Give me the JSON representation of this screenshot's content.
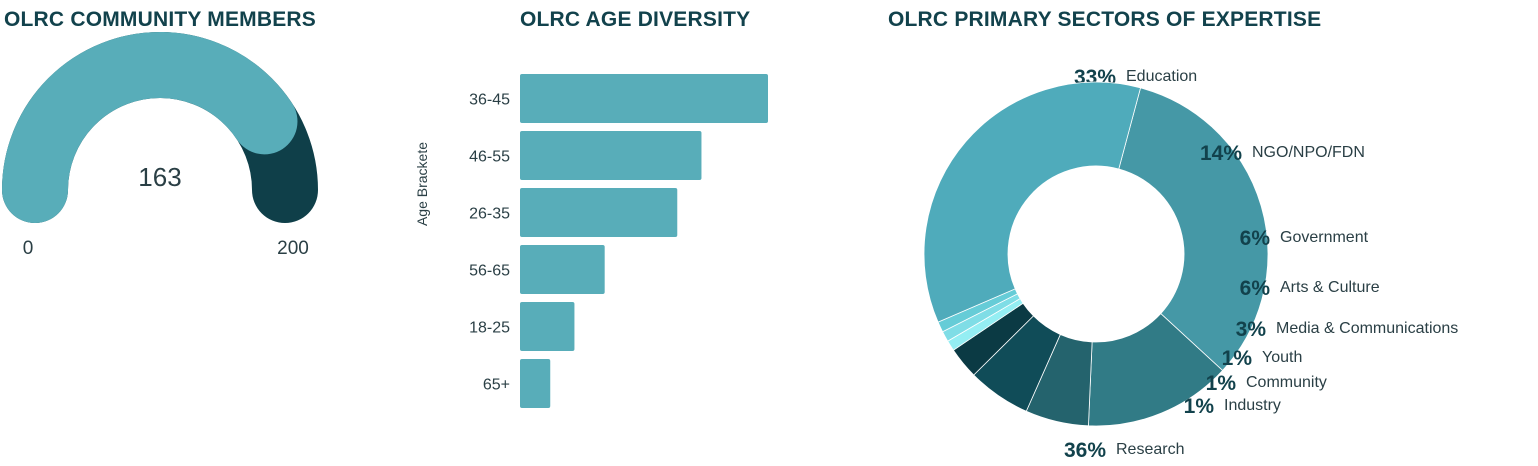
{
  "colors": {
    "title": "#12424c",
    "text": "#2a3f45",
    "gauge_fill": "#58adb9",
    "gauge_track": "#0f3f49",
    "bar": "#58adb9"
  },
  "gauge": {
    "title": "OLRC COMMUNITY MEMBERS",
    "value": 163,
    "min": 0,
    "max": 200,
    "value_label": "163",
    "min_label": "0",
    "max_label": "200"
  },
  "chart_data": [
    {
      "type": "bar",
      "orientation": "horizontal",
      "title": "OLRC AGE DIVERSITY",
      "ylabel": "Age Brackete",
      "xlabel": "",
      "categories": [
        "36-45",
        "46-55",
        "26-35",
        "56-65",
        "18-25",
        "65+"
      ],
      "values": [
        41,
        30,
        26,
        14,
        9,
        5
      ],
      "xlim": [
        0,
        41
      ],
      "grid": false,
      "legend": "none"
    },
    {
      "type": "pie",
      "variant": "donut",
      "title": "OLRC PRIMARY SECTORS OF EXPERTISE",
      "legend": "none",
      "slices": [
        {
          "label": "Education",
          "value": 33,
          "value_label": "33%",
          "color": "#4598a6"
        },
        {
          "label": "NGO/NPO/FDN",
          "value": 14,
          "value_label": "14%",
          "color": "#317b86"
        },
        {
          "label": "Government",
          "value": 6,
          "value_label": "6%",
          "color": "#24636d"
        },
        {
          "label": "Arts & Culture",
          "value": 6,
          "value_label": "6%",
          "color": "#104c58"
        },
        {
          "label": "Media & Communications",
          "value": 3,
          "value_label": "3%",
          "color": "#0b3a44"
        },
        {
          "label": "Youth",
          "value": 1,
          "value_label": "1%",
          "color": "#94eef3"
        },
        {
          "label": "Community",
          "value": 1,
          "value_label": "1%",
          "color": "#7fdde6"
        },
        {
          "label": "Industry",
          "value": 1,
          "value_label": "1%",
          "color": "#66ccd7"
        },
        {
          "label": "Research",
          "value": 36,
          "value_label": "36%",
          "color": "#4fabbb"
        }
      ]
    }
  ]
}
